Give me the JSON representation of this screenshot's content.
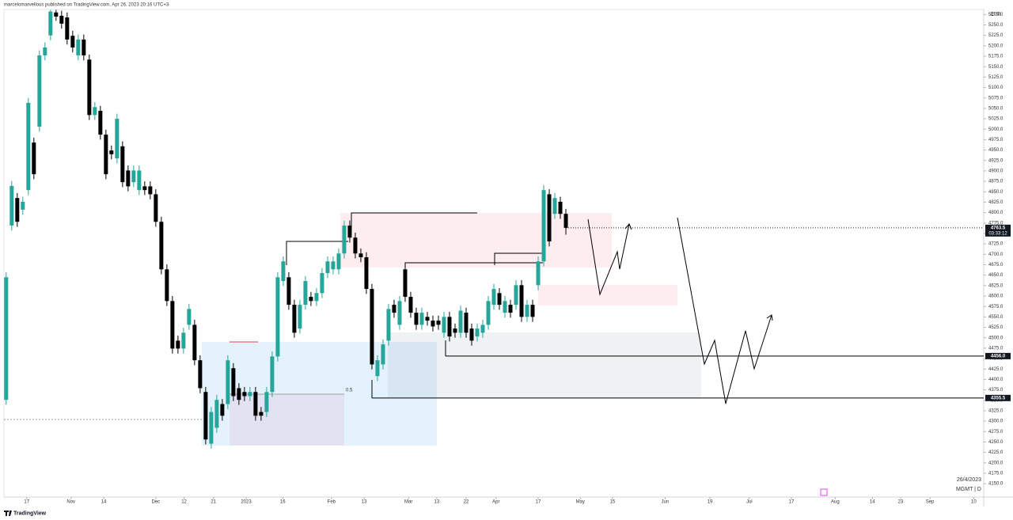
{
  "header": "marcelomarvellous published on TradingView.com, Apr 26, 2023 20:16 UTC+3",
  "footer": "TradingView",
  "chart_data": {
    "type": "candlestick",
    "currency": "EUR",
    "symbol_label": "MGMT | D",
    "date_label": "26/4/2023",
    "fib_label": "0.5",
    "up_color": "#26a69a",
    "down_color": "#000000",
    "xlim": [
      -0.4,
      176.4
    ],
    "ylim": [
      4118,
      5287
    ],
    "ohlc": [
      [
        4351,
        4657,
        4339,
        4645
      ],
      [
        4769,
        4876,
        4757,
        4864
      ],
      [
        4835,
        4847,
        4766,
        4778
      ],
      [
        4807,
        4838,
        4795,
        4826
      ],
      [
        4854,
        5075,
        4842,
        5063
      ],
      [
        4968,
        4980,
        4880,
        4892
      ],
      [
        5006,
        5189,
        4994,
        5177
      ],
      [
        5177,
        5208,
        5165,
        5196
      ],
      [
        5225,
        5286,
        5213,
        5282
      ],
      [
        5280,
        5286,
        5260,
        5270
      ],
      [
        5272,
        5284,
        5241,
        5253
      ],
      [
        5268,
        5280,
        5203,
        5215
      ],
      [
        5224,
        5236,
        5184,
        5196
      ],
      [
        5177,
        5227,
        5165,
        5215
      ],
      [
        5215,
        5227,
        5165,
        5177
      ],
      [
        5167,
        5179,
        5022,
        5034
      ],
      [
        5034,
        5065,
        5022,
        5053
      ],
      [
        5044,
        5056,
        4975,
        4987
      ],
      [
        4987,
        4999,
        4880,
        4892
      ],
      [
        4949,
        4961,
        4928,
        4940
      ],
      [
        4930,
        5037,
        4918,
        5025
      ],
      [
        4959,
        4971,
        4861,
        4873
      ],
      [
        4901,
        4913,
        4851,
        4863
      ],
      [
        4873,
        4913,
        4861,
        4901
      ],
      [
        4854,
        4913,
        4842,
        4901
      ],
      [
        4863,
        4875,
        4842,
        4854
      ],
      [
        4863,
        4875,
        4832,
        4844
      ],
      [
        4844,
        4856,
        4766,
        4778
      ],
      [
        4778,
        4790,
        4652,
        4664
      ],
      [
        4664,
        4676,
        4576,
        4588
      ],
      [
        4588,
        4600,
        4462,
        4474
      ],
      [
        4493,
        4505,
        4462,
        4474
      ],
      [
        4474,
        4524,
        4462,
        4512
      ],
      [
        4531,
        4581,
        4519,
        4569
      ],
      [
        4531,
        4543,
        4434,
        4446
      ],
      [
        4446,
        4458,
        4367,
        4379
      ],
      [
        4370,
        4382,
        4244,
        4256
      ],
      [
        4246,
        4334,
        4234,
        4322
      ],
      [
        4284,
        4363,
        4272,
        4351
      ],
      [
        4341,
        4353,
        4301,
        4313
      ],
      [
        4341,
        4458,
        4329,
        4446
      ],
      [
        4427,
        4439,
        4348,
        4360
      ],
      [
        4379,
        4391,
        4339,
        4351
      ],
      [
        4370,
        4382,
        4348,
        4360
      ],
      [
        4360,
        4382,
        4348,
        4370
      ],
      [
        4370,
        4382,
        4301,
        4313
      ],
      [
        4322,
        4334,
        4301,
        4313
      ],
      [
        4322,
        4382,
        4310,
        4370
      ],
      [
        4370,
        4467,
        4358,
        4455
      ],
      [
        4455,
        4657,
        4443,
        4645
      ],
      [
        4636,
        4695,
        4624,
        4683
      ],
      [
        4645,
        4657,
        4567,
        4579
      ],
      [
        4579,
        4591,
        4500,
        4512
      ],
      [
        4522,
        4591,
        4510,
        4579
      ],
      [
        4579,
        4648,
        4567,
        4636
      ],
      [
        4598,
        4610,
        4576,
        4588
      ],
      [
        4588,
        4619,
        4576,
        4607
      ],
      [
        4607,
        4667,
        4595,
        4655
      ],
      [
        4655,
        4695,
        4643,
        4683
      ],
      [
        4664,
        4695,
        4652,
        4683
      ],
      [
        4664,
        4714,
        4652,
        4702
      ],
      [
        4702,
        4781,
        4690,
        4769
      ],
      [
        4769,
        4781,
        4728,
        4740
      ],
      [
        4740,
        4752,
        4690,
        4702
      ],
      [
        4702,
        4714,
        4681,
        4693
      ],
      [
        4693,
        4705,
        4605,
        4617
      ],
      [
        4617,
        4629,
        4424,
        4436
      ],
      [
        4408,
        4458,
        4396,
        4446
      ],
      [
        4436,
        4496,
        4424,
        4484
      ],
      [
        4493,
        4581,
        4481,
        4569
      ],
      [
        4579,
        4591,
        4548,
        4560
      ],
      [
        4531,
        4600,
        4519,
        4588
      ],
      [
        4664,
        4676,
        4586,
        4598
      ],
      [
        4598,
        4610,
        4548,
        4560
      ],
      [
        4560,
        4572,
        4519,
        4531
      ],
      [
        4531,
        4572,
        4519,
        4560
      ],
      [
        4550,
        4562,
        4529,
        4541
      ],
      [
        4541,
        4553,
        4515,
        4527
      ],
      [
        4541,
        4553,
        4519,
        4531
      ],
      [
        4512,
        4562,
        4500,
        4550
      ],
      [
        4550,
        4562,
        4491,
        4503
      ],
      [
        4522,
        4534,
        4500,
        4512
      ],
      [
        4512,
        4577,
        4500,
        4565
      ],
      [
        4560,
        4572,
        4500,
        4512
      ],
      [
        4522,
        4534,
        4481,
        4493
      ],
      [
        4503,
        4534,
        4491,
        4522
      ],
      [
        4512,
        4543,
        4500,
        4531
      ],
      [
        4531,
        4600,
        4519,
        4588
      ],
      [
        4579,
        4629,
        4567,
        4617
      ],
      [
        4607,
        4619,
        4567,
        4579
      ],
      [
        4560,
        4600,
        4548,
        4588
      ],
      [
        4579,
        4591,
        4548,
        4560
      ],
      [
        4579,
        4638,
        4567,
        4626
      ],
      [
        4626,
        4638,
        4538,
        4550
      ],
      [
        4550,
        4591,
        4538,
        4579
      ],
      [
        4579,
        4591,
        4538,
        4550
      ],
      [
        4626,
        4695,
        4614,
        4683
      ],
      [
        4683,
        4866,
        4671,
        4854
      ],
      [
        4844,
        4856,
        4719,
        4731
      ],
      [
        4797,
        4847,
        4785,
        4835
      ],
      [
        4826,
        4838,
        4785,
        4797
      ],
      [
        4797,
        4809,
        4747,
        4763.5
      ]
    ],
    "last_price": 4763.5,
    "countdown": "03:33:12",
    "levels": [
      {
        "value": 4456,
        "label": "4456.0"
      },
      4355.5
    ],
    "yticks": [
      {
        "value": 4150,
        "label": "4150.0"
      },
      {
        "value": 4175,
        "label": "4175.0"
      },
      {
        "value": 4200,
        "label": "4200.0"
      },
      {
        "value": 4225,
        "label": "4225.0"
      },
      {
        "value": 4250,
        "label": "4250.0"
      },
      {
        "value": 4275,
        "label": "4275.0"
      },
      {
        "value": 4300,
        "label": "4300.0"
      },
      {
        "value": 4325,
        "label": "4325.0"
      },
      {
        "value": 4350,
        "label": "4350.0"
      },
      {
        "value": 4375,
        "label": "4375.0"
      },
      {
        "value": 4400,
        "label": "4400.0"
      },
      {
        "value": 4425,
        "label": "4425.0"
      },
      {
        "value": 4450,
        "label": "4450.0"
      },
      {
        "value": 4475,
        "label": "4475.0"
      },
      {
        "value": 4500,
        "label": "4500.0"
      },
      {
        "value": 4525,
        "label": "4525.0"
      },
      {
        "value": 4550,
        "label": "4550.0"
      },
      {
        "value": 4575,
        "label": "4575.0"
      },
      {
        "value": 4600,
        "label": "4600.0"
      },
      {
        "value": 4625,
        "label": "4625.0"
      },
      {
        "value": 4650,
        "label": "4650.0"
      },
      {
        "value": 4675,
        "label": "4675.0"
      },
      {
        "value": 4700,
        "label": "4700.0"
      },
      {
        "value": 4725,
        "label": "4725.0"
      },
      {
        "value": 4750,
        "label": "4750.0"
      },
      {
        "value": 4775,
        "label": "4775.0"
      },
      {
        "value": 4800,
        "label": "4800.0"
      },
      {
        "value": 4825,
        "label": "4825.0"
      },
      {
        "value": 4850,
        "label": "4850.0"
      },
      {
        "value": 4875,
        "label": "4875.0"
      },
      {
        "value": 4900,
        "label": "4900.0"
      },
      {
        "value": 4925,
        "label": "4925.0"
      },
      {
        "value": 4950,
        "label": "4950.0"
      },
      {
        "value": 4975,
        "label": "4975.0"
      },
      {
        "value": 5000,
        "label": "5000.0"
      },
      {
        "value": 5025,
        "label": "5025.0"
      },
      {
        "value": 5050,
        "label": "5050.0"
      },
      {
        "value": 5075,
        "label": "5075.0"
      },
      {
        "value": 5100,
        "label": "5100.0"
      },
      {
        "value": 5125,
        "label": "5125.0"
      },
      {
        "value": 5150,
        "label": "5150.0"
      },
      {
        "value": 5175,
        "label": "5175.0"
      },
      {
        "value": 5200,
        "label": "5200.0"
      },
      {
        "value": 5225,
        "label": "5225.0"
      },
      {
        "value": 5250,
        "label": "5250.0"
      },
      {
        "value": 5275,
        "label": "5275.0"
      }
    ],
    "xticks": [
      {
        "value": 3.7,
        "label": "17"
      },
      {
        "value": 11.7,
        "label": "Nov"
      },
      {
        "value": 17.6,
        "label": "14"
      },
      {
        "value": 27,
        "label": "Dec"
      },
      {
        "value": 32.1,
        "label": "12"
      },
      {
        "value": 37.4,
        "label": "21"
      },
      {
        "value": 43.3,
        "label": "2023"
      },
      {
        "value": 49.9,
        "label": "16"
      },
      {
        "value": 58.7,
        "label": "Feb"
      },
      {
        "value": 64.6,
        "label": "13"
      },
      {
        "value": 72.6,
        "label": "Mar"
      },
      {
        "value": 77.7,
        "label": "13"
      },
      {
        "value": 83,
        "label": "22"
      },
      {
        "value": 88.4,
        "label": "Apr"
      },
      {
        "value": 96,
        "label": "17"
      },
      {
        "value": 103.6,
        "label": "May"
      },
      {
        "value": 109.4,
        "label": "15"
      },
      {
        "value": 118.9,
        "label": "Jun"
      },
      {
        "value": 127,
        "label": "19"
      },
      {
        "value": 134.1,
        "label": "Jul"
      },
      {
        "value": 141.7,
        "label": "17"
      },
      {
        "value": 149.6,
        "label": "Aug"
      },
      {
        "value": 156.3,
        "label": "14"
      },
      {
        "value": 161.4,
        "label": "23"
      },
      {
        "value": 166.7,
        "label": "Sep"
      },
      {
        "value": 174.6,
        "label": "10"
      }
    ]
  }
}
